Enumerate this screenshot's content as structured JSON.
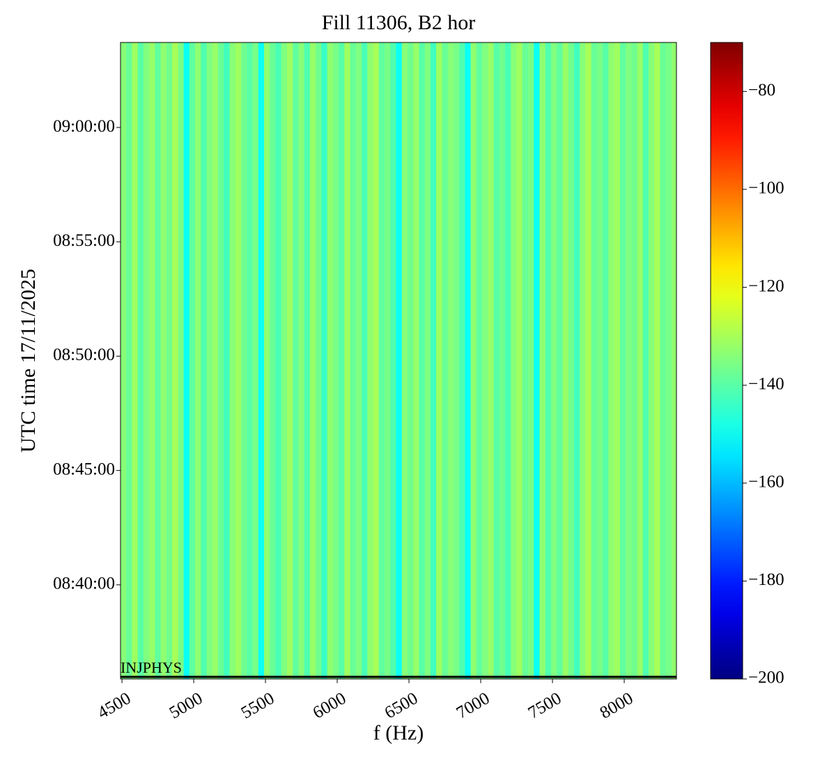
{
  "chart_data": {
    "type": "heatmap",
    "title": "Fill 11306, B2 hor",
    "xlabel": "f (Hz)",
    "ylabel": "UTC time 17/11/2025",
    "annotation": "INJPHYS",
    "colormap": "jet",
    "x": [
      4510,
      4550,
      4590,
      4630,
      4670,
      4710,
      4750,
      4790,
      4830,
      4870,
      4910,
      4950,
      4990,
      5030,
      5070,
      5110,
      5150,
      5190,
      5230,
      5270,
      5310,
      5350,
      5390,
      5430,
      5470,
      5510,
      5550,
      5590,
      5630,
      5670,
      5710,
      5750,
      5790,
      5830,
      5870,
      5910,
      5950,
      5990,
      6030,
      6070,
      6110,
      6150,
      6190,
      6230,
      6270,
      6310,
      6350,
      6390,
      6430,
      6470,
      6510,
      6550,
      6590,
      6630,
      6670,
      6710,
      6750,
      6790,
      6830,
      6870,
      6910,
      6950,
      6990,
      7030,
      7070,
      7110,
      7150,
      7190,
      7230,
      7270,
      7310,
      7350,
      7390,
      7430,
      7470,
      7510,
      7550,
      7590,
      7630,
      7670,
      7710,
      7750,
      7790,
      7830,
      7870,
      7910,
      7950,
      7990,
      8030,
      8070,
      8110,
      8150,
      8190,
      8230,
      8270,
      8310,
      8350
    ],
    "values": [
      -134,
      -138,
      -131,
      -140,
      -135,
      -132,
      -139,
      -133,
      -137,
      -130,
      -136,
      -150,
      -139,
      -133,
      -141,
      -135,
      -132,
      -138,
      -143,
      -134,
      -131,
      -137,
      -140,
      -136,
      -150,
      -133,
      -138,
      -142,
      -135,
      -131,
      -139,
      -134,
      -141,
      -132,
      -137,
      -144,
      -133,
      -136,
      -140,
      -131,
      -138,
      -135,
      -142,
      -133,
      -130,
      -139,
      -136,
      -141,
      -150,
      -134,
      -137,
      -132,
      -140,
      -135,
      -143,
      -131,
      -138,
      -134,
      -136,
      -141,
      -150,
      -133,
      -139,
      -135,
      -132,
      -140,
      -137,
      -142,
      -134,
      -131,
      -138,
      -136,
      -150,
      -133,
      -141,
      -135,
      -139,
      -132,
      -137,
      -143,
      -134,
      -130,
      -138,
      -136,
      -140,
      -133,
      -131,
      -139,
      -135,
      -137,
      -132,
      -141,
      -134,
      -130,
      -138,
      -136,
      -133
    ],
    "xlim": [
      4490,
      8364
    ],
    "xticks": [
      4500,
      5000,
      5500,
      6000,
      6500,
      7000,
      7500,
      8000
    ],
    "ylim": [
      "08:35:53",
      "09:03:43"
    ],
    "yticks": [
      "08:40:00",
      "08:45:00",
      "08:50:00",
      "08:55:00",
      "09:00:00"
    ],
    "zlim": [
      -200,
      -70
    ],
    "zticks": [
      {
        "value": -200,
        "label": "−200"
      },
      {
        "value": -180,
        "label": "−180"
      },
      {
        "value": -160,
        "label": "−160"
      },
      {
        "value": -140,
        "label": "−140"
      },
      {
        "value": -120,
        "label": "−120"
      },
      {
        "value": -100,
        "label": "−100"
      },
      {
        "value": -80,
        "label": "−80"
      }
    ]
  }
}
